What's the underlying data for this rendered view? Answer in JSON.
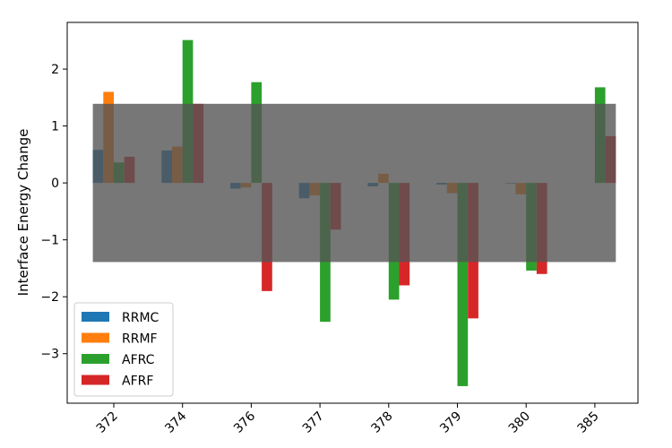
{
  "chart_data": {
    "type": "bar",
    "title": "",
    "xlabel": "",
    "ylabel": "Interface Energy Change",
    "categories": [
      "372",
      "374",
      "376",
      "377",
      "378",
      "379",
      "380",
      "385"
    ],
    "series": [
      {
        "name": "RRMC",
        "color": "#1f77b4",
        "values": [
          0.58,
          0.57,
          -0.1,
          -0.27,
          -0.06,
          -0.03,
          -0.01,
          0.0
        ]
      },
      {
        "name": "RRMF",
        "color": "#ff7f0e",
        "values": [
          1.6,
          0.64,
          -0.08,
          -0.22,
          0.16,
          -0.18,
          -0.2,
          0.0
        ]
      },
      {
        "name": "AFRC",
        "color": "#2ca02c",
        "values": [
          0.36,
          2.51,
          1.77,
          -2.44,
          -2.05,
          -3.57,
          -1.54,
          1.68
        ]
      },
      {
        "name": "AFRF",
        "color": "#d62728",
        "values": [
          0.46,
          1.39,
          -1.9,
          -0.82,
          -1.8,
          -2.38,
          -1.6,
          0.82
        ]
      }
    ],
    "ylim": [
      -3.87,
      2.82
    ],
    "yticks": [
      -3,
      -2,
      -1,
      0,
      1,
      2
    ],
    "ytick_labels": [
      "−3",
      "−2",
      "−1",
      "0",
      "1",
      "2"
    ],
    "band": {
      "ymin": -1.39,
      "ymax": 1.39,
      "color": "#555555",
      "opacity": 0.8
    },
    "legend_position": "lower-left",
    "grid": false
  }
}
